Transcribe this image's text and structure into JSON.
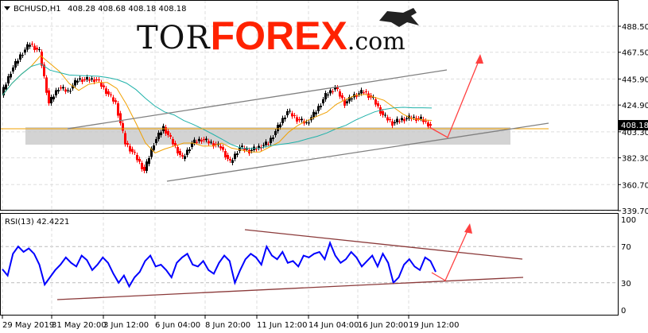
{
  "header": {
    "symbol": "BCHUSD,H1",
    "ohlc": "408.28 408.68 408.18 408.18"
  },
  "logo": {
    "part1": "TOR",
    "part2": "FOREX",
    "part3": ".com"
  },
  "rsi": {
    "label": "RSI(13) 42.4221"
  },
  "colors": {
    "price": "#000000",
    "bull_candle": "#000000",
    "bear_candle": "#ff0000",
    "ma_fast": "#f0a000",
    "ma_slow": "#20b2aa",
    "rsi_line": "#0000ff",
    "channel": "#808080",
    "rsi_trend": "#8b3a3a",
    "arrow": "#ff4040",
    "zone": "#c8c8c8",
    "logo_accent": "#ff2200"
  },
  "chart_data": [
    {
      "type": "line",
      "title": "BCHUSD,H1",
      "ylim": [
        339.7,
        500
      ],
      "yticks": [
        "488.50",
        "467.50",
        "445.90",
        "424.90",
        "403.30",
        "382.30",
        "360.70",
        "339.70"
      ],
      "current_price": "408.18",
      "xticks": [
        "29 May 2019",
        "31 May 20:00",
        "3 Jun 12:00",
        "6 Jun 04:00",
        "8 Jun 20:00",
        "11 Jun 12:00",
        "14 Jun 04:00",
        "16 Jun 20:00",
        "19 Jun 12:00"
      ],
      "close": [
        432.7,
        452.0,
        464.8,
        474.4,
        468.0,
        426.3,
        439.1,
        435.9,
        445.5,
        445.5,
        445.5,
        435.9,
        426.3,
        394.2,
        384.6,
        371.8,
        394.2,
        407.0,
        394.2,
        381.4,
        394.2,
        397.4,
        394.2,
        391.0,
        378.2,
        391.0,
        387.8,
        391.0,
        394.2,
        407.0,
        419.9,
        413.5,
        410.2,
        419.9,
        432.7,
        439.1,
        426.3,
        432.7,
        435.9,
        429.5,
        416.7,
        410.2,
        413.5,
        414.7,
        413.5,
        408.2
      ],
      "grid": true
    },
    {
      "type": "line",
      "title": "RSI(13) 42.4221",
      "ylim": [
        0,
        100
      ],
      "yticks": [
        "100",
        "70",
        "30",
        "0"
      ],
      "values": [
        45,
        38,
        62,
        70,
        64,
        68,
        62,
        50,
        28,
        36,
        44,
        50,
        58,
        52,
        48,
        60,
        55,
        44,
        50,
        58,
        52,
        40,
        30,
        38,
        26,
        36,
        42,
        54,
        60,
        48,
        50,
        44,
        36,
        52,
        58,
        62,
        50,
        48,
        54,
        44,
        40,
        52,
        60,
        54,
        30,
        44,
        56,
        62,
        58,
        50,
        70,
        60,
        56,
        64,
        52,
        54,
        48,
        60,
        58,
        62,
        64,
        56,
        74,
        60,
        52,
        56,
        64,
        58,
        48,
        54,
        60,
        48,
        62,
        52,
        30,
        36,
        50,
        56,
        48,
        44,
        58,
        54,
        42
      ]
    }
  ]
}
